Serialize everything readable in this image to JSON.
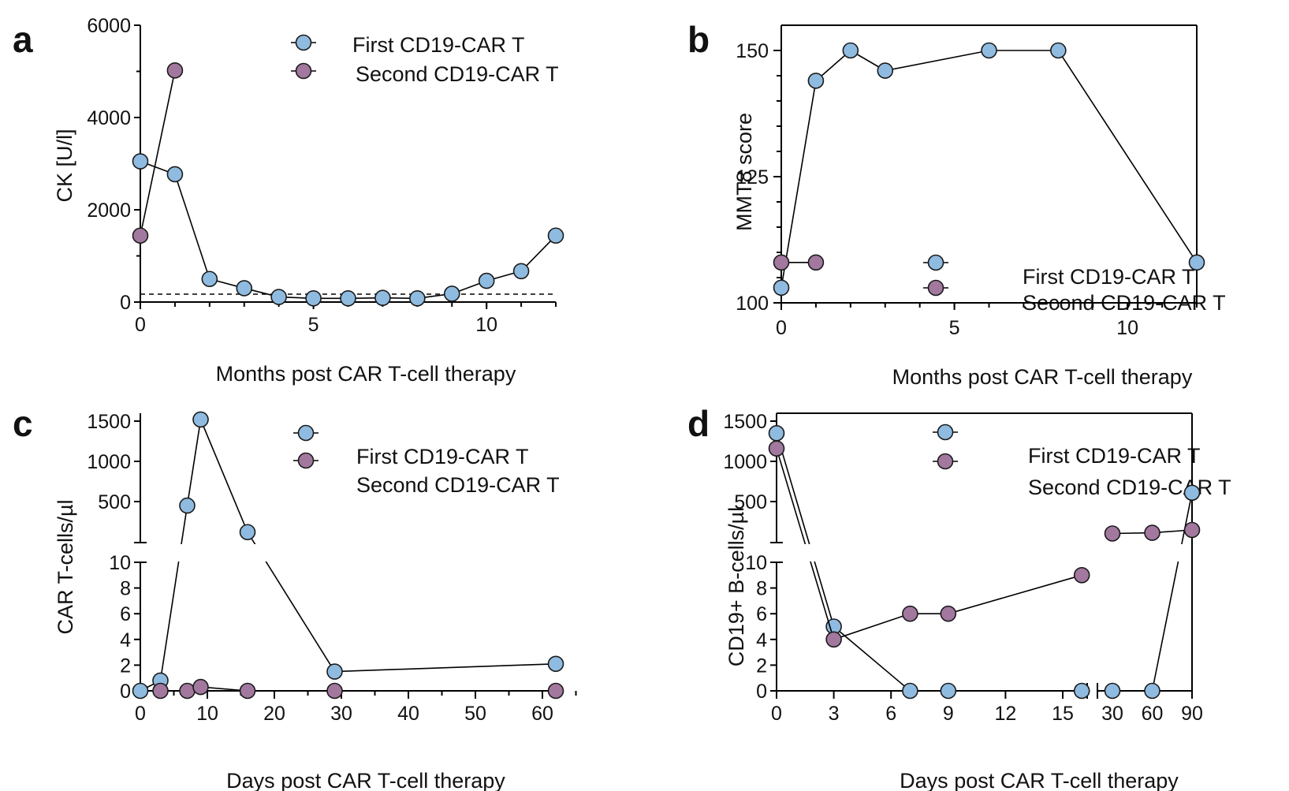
{
  "colors": {
    "first": "#8fbbe0",
    "second": "#a2789f",
    "marker_stroke": "#1a1a1a"
  },
  "chart_data": [
    {
      "panel": "a",
      "type": "line",
      "xlabel": "Months post CAR T-cell therapy",
      "ylabel": "CK [U/l]",
      "xlim": [
        0,
        12
      ],
      "ylim": [
        0,
        6000
      ],
      "xticks": [
        0,
        5,
        10
      ],
      "yticks": [
        0,
        2000,
        4000,
        6000
      ],
      "reference_line": 170,
      "legend_position": "top-right",
      "series": [
        {
          "name": "First CD19-CAR T",
          "color_key": "first",
          "x": [
            0,
            1,
            2,
            3,
            4,
            5,
            6,
            7,
            8,
            9,
            10,
            11,
            12
          ],
          "y": [
            3050,
            2770,
            500,
            300,
            110,
            80,
            80,
            90,
            80,
            180,
            460,
            670,
            1440
          ]
        },
        {
          "name": "Second CD19-CAR T",
          "color_key": "second",
          "x": [
            0,
            1
          ],
          "y": [
            1440,
            5020
          ]
        }
      ]
    },
    {
      "panel": "b",
      "type": "line",
      "xlabel": "Months post CAR T-cell therapy",
      "ylabel": "MMT8 score",
      "xlim": [
        0,
        12
      ],
      "ylim": [
        100,
        155
      ],
      "xticks": [
        0,
        5,
        10
      ],
      "yticks": [
        100,
        125,
        150
      ],
      "legend_position": "bottom-right",
      "series": [
        {
          "name": "First CD19-CAR T",
          "color_key": "first",
          "x": [
            0,
            1,
            2,
            3,
            6,
            8,
            12
          ],
          "y": [
            103,
            144,
            150,
            146,
            150,
            150,
            108
          ]
        },
        {
          "name": "Second CD19-CAR T",
          "color_key": "second",
          "x": [
            0,
            1
          ],
          "y": [
            108,
            108
          ]
        }
      ]
    },
    {
      "panel": "c",
      "type": "line",
      "xlabel": "Days post CAR T-cell therapy",
      "ylabel": "CAR T-cells/µl",
      "xlim": [
        0,
        62
      ],
      "xticks": [
        0,
        10,
        20,
        30,
        40,
        50,
        60
      ],
      "y_broken_axis": {
        "lower": [
          0,
          10
        ],
        "upper": [
          0,
          1600
        ]
      },
      "yticks_lower": [
        0,
        2,
        4,
        6,
        8,
        10
      ],
      "yticks_upper": [
        500,
        1000,
        1500
      ],
      "legend_position": "top-right",
      "series": [
        {
          "name": "First CD19-CAR T",
          "color_key": "first",
          "x": [
            0,
            3,
            7,
            9,
            16,
            29,
            62
          ],
          "y": [
            0,
            0.8,
            450,
            1520,
            120,
            1.5,
            2.1
          ]
        },
        {
          "name": "Second CD19-CAR T",
          "color_key": "second",
          "x": [
            3,
            7,
            9,
            16,
            29,
            62
          ],
          "y": [
            0,
            0,
            0.3,
            0,
            0,
            0
          ]
        }
      ]
    },
    {
      "panel": "d",
      "type": "line",
      "xlabel": "Days post CAR T-cell therapy",
      "ylabel": "CD19+ B-cells/µl",
      "x_broken_axis": {
        "left": [
          0,
          16
        ],
        "right": [
          30,
          90
        ]
      },
      "xticks": [
        0,
        3,
        6,
        9,
        12,
        15,
        30,
        60,
        90
      ],
      "y_broken_axis": {
        "lower": [
          0,
          10
        ],
        "upper": [
          0,
          1600
        ]
      },
      "yticks_lower": [
        0,
        2,
        4,
        6,
        8,
        10
      ],
      "yticks_upper": [
        500,
        1000,
        1500
      ],
      "legend_position": "top-right",
      "series": [
        {
          "name": "First CD19-CAR T",
          "color_key": "first",
          "x": [
            0,
            3,
            7,
            9,
            16,
            30,
            60,
            90
          ],
          "y": [
            1350,
            5,
            0,
            0,
            0,
            0,
            0,
            610
          ]
        },
        {
          "name": "Second CD19-CAR T",
          "color_key": "second",
          "x": [
            0,
            3,
            7,
            9,
            16,
            30,
            60,
            90
          ],
          "y": [
            1160,
            4,
            6,
            6,
            9,
            50,
            60,
            100
          ]
        }
      ]
    }
  ]
}
